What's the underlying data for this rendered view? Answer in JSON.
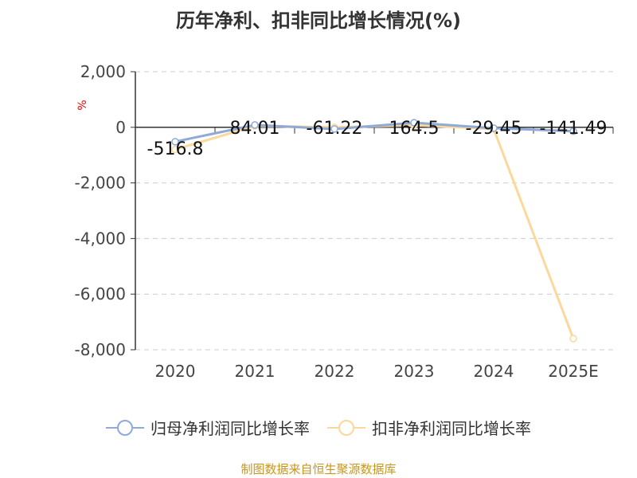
{
  "chart_data": {
    "type": "line",
    "title": "历年净利、扣非同比增长情况(%)",
    "ylabel": "%",
    "categories": [
      "2020",
      "2021",
      "2022",
      "2023",
      "2024",
      "2025E"
    ],
    "ylim": [
      -8000,
      2000
    ],
    "yticks": [
      2000,
      0,
      -2000,
      -4000,
      -6000,
      -8000
    ],
    "ytick_labels": [
      "2,000",
      "0",
      "-2,000",
      "-4,000",
      "-6,000",
      "-8,000"
    ],
    "grid": true,
    "legend": "bottom",
    "series": [
      {
        "name": "归母净利润同比增长率",
        "color": "#8fa9d9",
        "values": [
          -516.8,
          84.01,
          -61.22,
          164.5,
          -29.45,
          -141.49
        ],
        "labels": [
          "-516.8",
          "84.01",
          "-61.22",
          "164.5",
          "-29.45",
          "-141.49"
        ]
      },
      {
        "name": "扣非净利润同比增长率",
        "color": "#fcd89a",
        "values": [
          -800,
          50,
          0,
          80,
          -60,
          -7600
        ]
      }
    ]
  },
  "source": "制图数据来自恒生聚源数据库"
}
